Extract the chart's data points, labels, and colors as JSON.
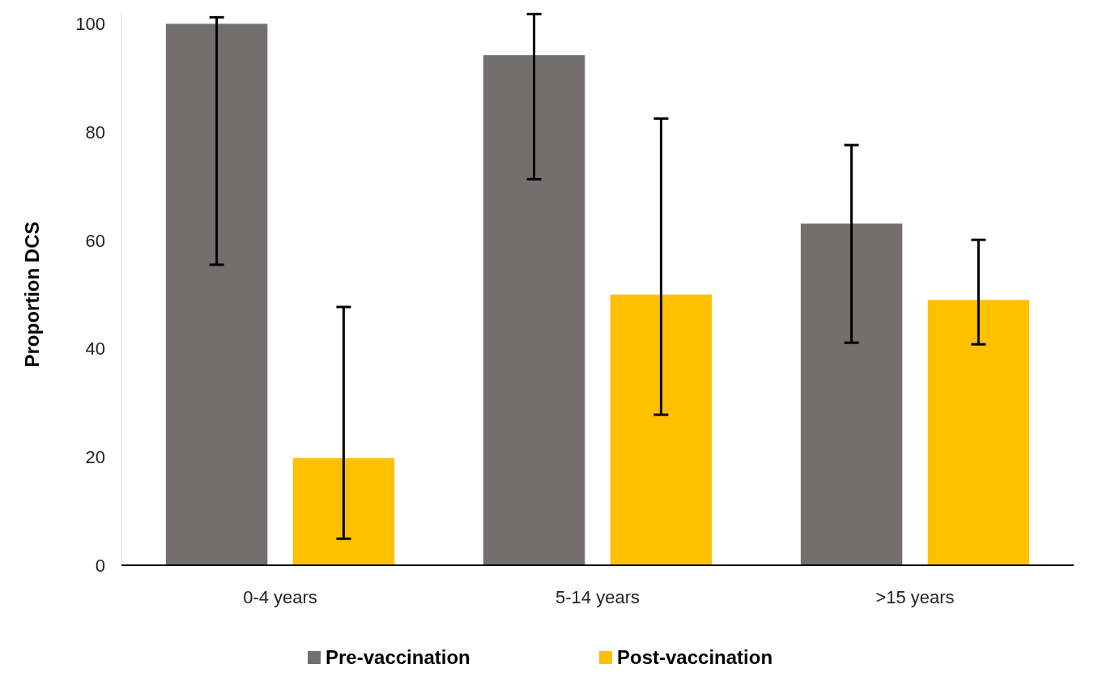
{
  "chart_data": {
    "type": "bar",
    "ylabel": "Proportion DCS",
    "categories": [
      "0-4 years",
      "5-14 years",
      ">15 years"
    ],
    "series": [
      {
        "name": "Pre-vaccination",
        "color": "#736f6e",
        "values": [
          100,
          94.2,
          63.1
        ],
        "errors": [
          [
            55.5,
            101.2
          ],
          [
            71.3,
            101.8
          ],
          [
            41.1,
            77.6
          ]
        ]
      },
      {
        "name": "Post-vaccination",
        "color": "#ffc000",
        "values": [
          19.8,
          50,
          49
        ],
        "errors": [
          [
            4.9,
            47.7
          ],
          [
            27.8,
            82.5
          ],
          [
            40.8,
            60.1
          ]
        ]
      }
    ],
    "ylim": [
      0,
      102
    ],
    "yticks": [
      0,
      20,
      40,
      60,
      80,
      100
    ],
    "grid": false,
    "legend": "bottom"
  }
}
